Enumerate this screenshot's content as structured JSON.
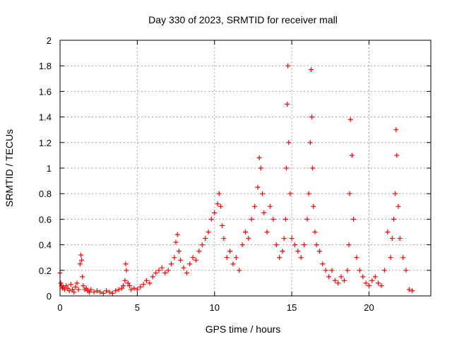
{
  "chart_data": {
    "type": "scatter",
    "title": "Day 330 of 2023, SRMTID for receiver mall",
    "xlabel": "GPS time / hours",
    "ylabel": "SRMTID / TECUs",
    "xlim": [
      0,
      24
    ],
    "ylim": [
      0,
      2
    ],
    "xticks": [
      0,
      5,
      10,
      15,
      20
    ],
    "xtick_labels": [
      "0",
      "5",
      "10",
      "15",
      "20"
    ],
    "yticks": [
      0,
      0.2,
      0.4,
      0.6,
      0.8,
      1.0,
      1.2,
      1.4,
      1.6,
      1.8,
      2.0
    ],
    "ytick_labels": [
      "0",
      "0.2",
      "0.4",
      "0.6",
      "0.8",
      "1",
      "1.2",
      "1.4",
      "1.6",
      "1.8",
      "2"
    ],
    "grid": true,
    "marker": "+",
    "color": "#ff0000",
    "series": [
      {
        "name": "SRMTID",
        "x": [
          0.0,
          0.05,
          0.1,
          0.15,
          0.2,
          0.3,
          0.4,
          0.5,
          0.6,
          0.7,
          0.8,
          0.9,
          1.0,
          1.1,
          1.2,
          1.3,
          1.35,
          1.4,
          1.45,
          1.5,
          1.6,
          1.7,
          1.8,
          1.9,
          2.0,
          2.2,
          2.4,
          2.6,
          2.8,
          3.0,
          3.2,
          3.4,
          3.6,
          3.8,
          4.0,
          4.1,
          4.2,
          4.25,
          4.3,
          4.4,
          4.5,
          4.6,
          4.8,
          5.0,
          5.2,
          5.4,
          5.6,
          5.8,
          6.0,
          6.2,
          6.4,
          6.6,
          6.8,
          7.0,
          7.2,
          7.4,
          7.5,
          7.6,
          7.7,
          7.8,
          8.0,
          8.2,
          8.4,
          8.6,
          8.8,
          9.0,
          9.2,
          9.4,
          9.6,
          9.8,
          10.0,
          10.2,
          10.3,
          10.4,
          10.5,
          10.6,
          10.8,
          11.0,
          11.2,
          11.4,
          11.6,
          11.8,
          12.0,
          12.2,
          12.4,
          12.6,
          12.8,
          12.9,
          13.0,
          13.1,
          13.2,
          13.4,
          13.6,
          13.8,
          14.0,
          14.2,
          14.4,
          14.5,
          14.6,
          14.65,
          14.7,
          14.75,
          14.8,
          14.9,
          15.0,
          15.2,
          15.4,
          15.6,
          15.8,
          16.0,
          16.1,
          16.2,
          16.25,
          16.3,
          16.35,
          16.4,
          16.5,
          16.6,
          16.8,
          17.0,
          17.2,
          17.4,
          17.6,
          17.8,
          18.0,
          18.2,
          18.4,
          18.6,
          18.7,
          18.75,
          18.8,
          18.9,
          19.0,
          19.2,
          19.4,
          19.6,
          19.8,
          20.0,
          20.2,
          20.4,
          20.6,
          20.8,
          21.0,
          21.2,
          21.4,
          21.5,
          21.6,
          21.7,
          21.75,
          21.8,
          21.9,
          22.0,
          22.2,
          22.4,
          22.6,
          22.8
        ],
        "y": [
          0.18,
          0.1,
          0.08,
          0.06,
          0.07,
          0.05,
          0.08,
          0.06,
          0.04,
          0.09,
          0.05,
          0.03,
          0.07,
          0.1,
          0.05,
          0.25,
          0.32,
          0.28,
          0.15,
          0.08,
          0.05,
          0.06,
          0.04,
          0.03,
          0.05,
          0.03,
          0.04,
          0.03,
          0.02,
          0.04,
          0.03,
          0.02,
          0.04,
          0.05,
          0.06,
          0.08,
          0.12,
          0.25,
          0.2,
          0.1,
          0.08,
          0.05,
          0.06,
          0.05,
          0.07,
          0.09,
          0.12,
          0.1,
          0.15,
          0.18,
          0.2,
          0.22,
          0.18,
          0.2,
          0.25,
          0.3,
          0.42,
          0.48,
          0.35,
          0.28,
          0.22,
          0.18,
          0.25,
          0.3,
          0.28,
          0.35,
          0.4,
          0.45,
          0.5,
          0.6,
          0.65,
          0.72,
          0.8,
          0.7,
          0.55,
          0.45,
          0.3,
          0.35,
          0.25,
          0.3,
          0.2,
          0.4,
          0.5,
          0.45,
          0.6,
          0.7,
          0.85,
          1.08,
          1.0,
          0.8,
          0.65,
          0.5,
          0.7,
          0.6,
          0.4,
          0.3,
          0.35,
          0.45,
          0.6,
          1.0,
          1.5,
          1.8,
          1.2,
          0.8,
          0.45,
          0.4,
          0.35,
          0.3,
          0.4,
          0.6,
          0.8,
          1.2,
          1.77,
          1.4,
          1.0,
          0.7,
          0.5,
          0.4,
          0.35,
          0.25,
          0.2,
          0.15,
          0.2,
          0.12,
          0.1,
          0.15,
          0.12,
          0.2,
          0.4,
          0.8,
          1.38,
          1.1,
          0.6,
          0.3,
          0.2,
          0.15,
          0.1,
          0.08,
          0.12,
          0.15,
          0.1,
          0.08,
          0.2,
          0.5,
          0.3,
          0.45,
          0.6,
          0.8,
          1.3,
          1.1,
          0.7,
          0.45,
          0.3,
          0.2,
          0.05,
          0.04
        ]
      }
    ]
  }
}
